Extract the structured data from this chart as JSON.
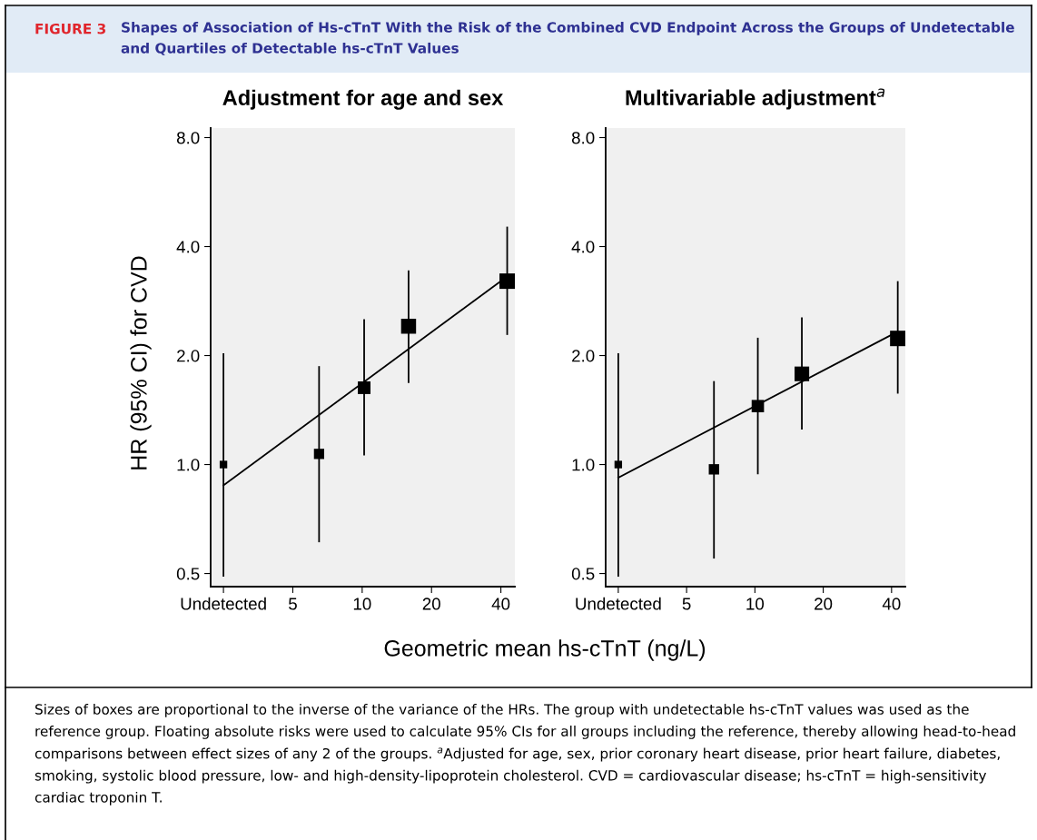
{
  "chart_data": [
    {
      "type": "bubble",
      "title": "Adjustment for age and sex",
      "xlabel": "Geometric mean hs-cTnT (ng/L)",
      "ylabel": "HR (95% CI) for CVD",
      "annotations": [
        "FIGURE 3",
        "Shapes of Association of Hs-cTnT With the Risk of the Combined CVD Endpoint Across the Groups of Undetectable and Quartiles of Detectable hs-cTnT Values",
        "Sizes of boxes are proportional to the inverse of the variance of the HRs. The group with undetectable hs-cTnT values was used as the reference group. Floating absolute risks were used to calculate 95% CIs for all groups including the reference, thereby allowing head-to-head comparisons between effect sizes of any 2 of the groups. $^{a}$Adjusted for age, sex, prior coronary heart disease, prior heart failure, diabetes, smoking, systolic blood pressure, low- and high-density-lipoprotein cholesterol. CVD = cardiovascular disease; hs-cTnT = high-sensitivity cardiac troponin T."
      ],
      "log": "xy",
      "grid": false,
      "line_style": "solid",
      "xlim": [
        2.2,
        46
      ],
      "xticks": [
        {
          "value": 2.5,
          "label": "Undetected"
        },
        5,
        10,
        20,
        40
      ],
      "ylim": [
        0.46,
        8.5
      ],
      "yticks": [
        {
          "value": 0.5,
          "label": "0.5"
        },
        {
          "value": 1,
          "label": "1.0"
        },
        {
          "value": 2,
          "label": "2.0"
        },
        {
          "value": 4,
          "label": "4.0"
        },
        {
          "value": 8,
          "label": "8.0"
        }
      ],
      "series": [
        {
          "marker": "square",
          "color": "#000000",
          "x": [
            2.5,
            6.5,
            10.2,
            15.9,
            42.6
          ],
          "values": [
            1.0,
            1.07,
            1.63,
            2.41,
            3.21
          ],
          "sizes": [
            0.24,
            0.44,
            0.67,
            0.94,
            1
          ],
          "errors": [
            [
              0.49,
              2.03
            ],
            [
              0.61,
              1.87
            ],
            [
              1.06,
              2.52
            ],
            [
              1.68,
              3.44
            ],
            [
              2.28,
              4.54
            ]
          ]
        },
        {
          "type": "line",
          "marker": "none",
          "color": "#000000",
          "x": [
            2.5,
            40.5
          ],
          "values": [
            0.876,
            3.23
          ]
        }
      ]
    },
    {
      "type": "bubble",
      "title": "Multivariable adjustment$^{a}$",
      "log": "xy",
      "grid": false,
      "line_style": "solid",
      "xlim": [
        2.2,
        46
      ],
      "xticks": [
        {
          "value": 2.5,
          "label": "Undetected"
        },
        5,
        10,
        20,
        40
      ],
      "ylim": [
        0.46,
        8.5
      ],
      "yticks": [
        {
          "value": 0.5,
          "label": "0.5"
        },
        {
          "value": 1,
          "label": "1.0"
        },
        {
          "value": 2,
          "label": "2.0"
        },
        {
          "value": 4,
          "label": "4.0"
        },
        {
          "value": 8,
          "label": "8.0"
        }
      ],
      "series": [
        {
          "marker": "square",
          "color": "#000000",
          "x": [
            2.5,
            6.6,
            10.3,
            16.1,
            42.6
          ],
          "values": [
            1.0,
            0.97,
            1.45,
            1.78,
            2.23
          ],
          "sizes": [
            0.24,
            0.45,
            0.64,
            0.9,
            1
          ],
          "errors": [
            [
              0.49,
              2.03
            ],
            [
              0.55,
              1.7
            ],
            [
              0.94,
              2.24
            ],
            [
              1.25,
              2.55
            ],
            [
              1.57,
              3.21
            ]
          ]
        },
        {
          "type": "line",
          "marker": "none",
          "color": "#000000",
          "x": [
            2.5,
            41
          ],
          "values": [
            0.92,
            2.3
          ]
        }
      ]
    }
  ]
}
